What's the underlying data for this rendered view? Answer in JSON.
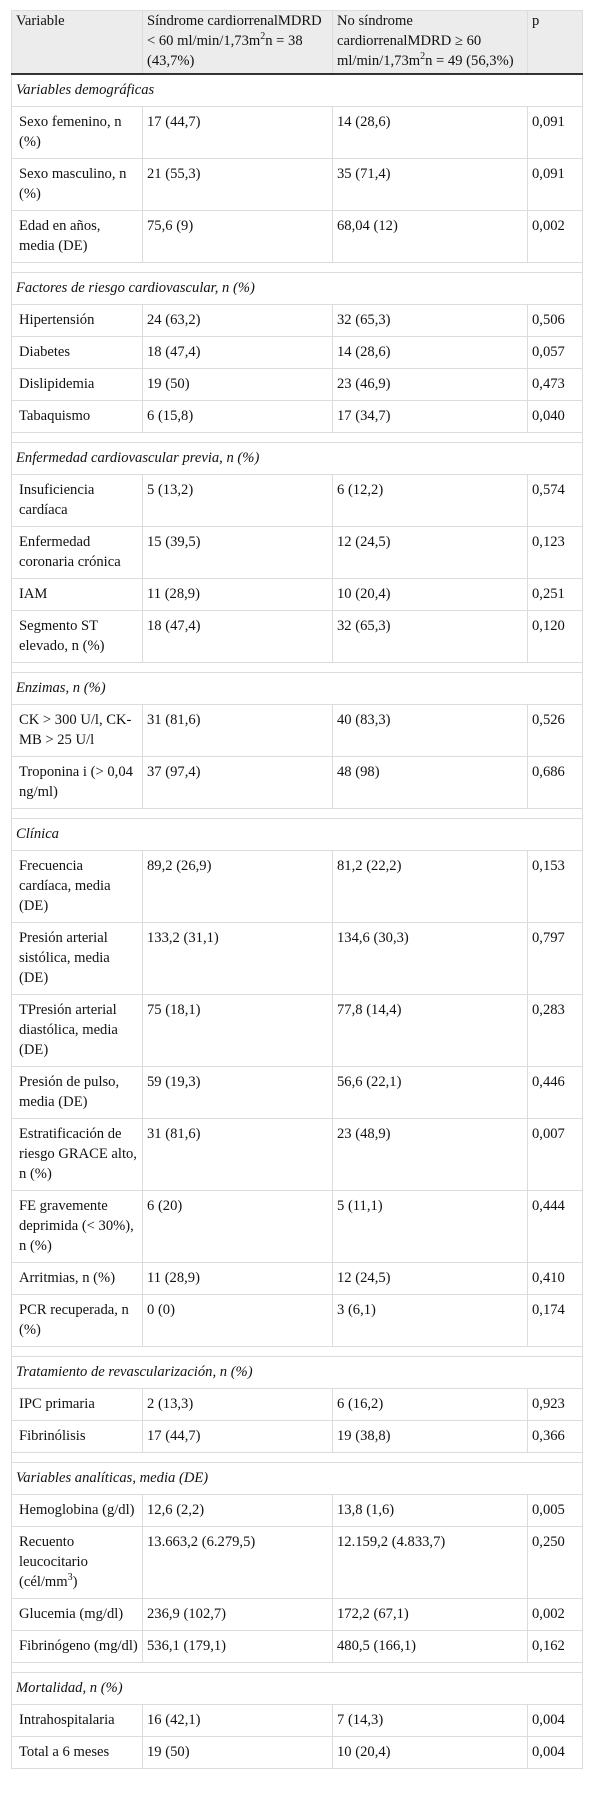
{
  "table": {
    "header": [
      "Variable",
      {
        "parts": [
          "Síndrome cardiorrenalMDRD < 60 ml/min/1,73m",
          "2",
          "n = 38 (43,7%)"
        ]
      },
      {
        "parts": [
          "No síndrome cardiorrenalMDRD ≥ 60 ml/min/1,73m",
          "2",
          "n = 49 (56,3%)"
        ]
      },
      "p"
    ],
    "sections": [
      {
        "title": "Variables demográficas",
        "rows": [
          [
            "Sexo femenino, n (%)",
            "17 (44,7)",
            "14 (28,6)",
            "0,091"
          ],
          [
            "Sexo masculino, n (%)",
            "21 (55,3)",
            "35 (71,4)",
            "0,091"
          ],
          [
            "Edad en años, media (DE)",
            "75,6 (9)",
            "68,04 (12)",
            "0,002"
          ]
        ]
      },
      {
        "title": "Factores de riesgo cardiovascular, n (%)",
        "rows": [
          [
            "Hipertensión",
            "24 (63,2)",
            "32 (65,3)",
            "0,506"
          ],
          [
            "Diabetes",
            "18 (47,4)",
            "14 (28,6)",
            "0,057"
          ],
          [
            "Dislipidemia",
            "19 (50)",
            "23 (46,9)",
            "0,473"
          ],
          [
            "Tabaquismo",
            "6 (15,8)",
            "17 (34,7)",
            "0,040"
          ]
        ]
      },
      {
        "title": "Enfermedad cardiovascular previa, n (%)",
        "rows": [
          [
            "Insuficiencia cardíaca",
            "5 (13,2)",
            "6 (12,2)",
            "0,574"
          ],
          [
            "Enfermedad coronaria crónica",
            "15 (39,5)",
            "12 (24,5)",
            "0,123"
          ],
          [
            "IAM",
            "11 (28,9)",
            "10 (20,4)",
            "0,251"
          ],
          [
            "Segmento ST elevado, n (%)",
            "18 (47,4)",
            "32 (65,3)",
            "0,120"
          ]
        ]
      },
      {
        "title": "Enzimas, n (%)",
        "rows": [
          [
            "CK > 300 U/l, CK-MB > 25 U/l",
            "31 (81,6)",
            "40 (83,3)",
            "0,526"
          ],
          [
            "Troponina i (> 0,04 ng/ml)",
            "37 (97,4)",
            "48 (98)",
            "0,686"
          ]
        ]
      },
      {
        "title": "Clínica",
        "rows": [
          [
            "Frecuencia cardíaca, media (DE)",
            "89,2 (26,9)",
            "81,2 (22,2)",
            "0,153"
          ],
          [
            "Presión arterial sistólica, media (DE)",
            "133,2 (31,1)",
            "134,6 (30,3)",
            "0,797"
          ],
          [
            "TPresión arterial diastólica, media (DE)",
            "75 (18,1)",
            "77,8 (14,4)",
            "0,283"
          ],
          [
            "Presión de pulso, media (DE)",
            "59 (19,3)",
            "56,6 (22,1)",
            "0,446"
          ],
          [
            "Estratificación de riesgo GRACE alto, n (%)",
            "31 (81,6)",
            "23 (48,9)",
            "0,007"
          ],
          [
            "FE gravemente deprimida (< 30%), n (%)",
            "6 (20)",
            "5 (11,1)",
            "0,444"
          ],
          [
            "Arritmias, n (%)",
            "11 (28,9)",
            "12 (24,5)",
            "0,410"
          ],
          [
            "PCR recuperada, n (%)",
            "0 (0)",
            "3 (6,1)",
            "0,174"
          ]
        ]
      },
      {
        "title": "Tratamiento de revascularización, n (%)",
        "rows": [
          [
            "IPC primaria",
            "2 (13,3)",
            "6 (16,2)",
            "0,923"
          ],
          [
            "Fibrinólisis",
            "17 (44,7)",
            "19 (38,8)",
            "0,366"
          ]
        ]
      },
      {
        "title": "Variables analíticas, media (DE)",
        "rows": [
          [
            "Hemoglobina (g/dl)",
            "12,6 (2,2)",
            "13,8 (1,6)",
            "0,005"
          ],
          [
            {
              "parts": [
                "Recuento leucocitario (cél/mm",
                "3",
                ")"
              ]
            },
            "13.663,2 (6.279,5)",
            "12.159,2 (4.833,7)",
            "0,250"
          ],
          [
            "Glucemia (mg/dl)",
            "236,9 (102,7)",
            "172,2 (67,1)",
            "0,002"
          ],
          [
            "Fibrinógeno (mg/dl)",
            "536,1 (179,1)",
            "480,5 (166,1)",
            "0,162"
          ]
        ]
      },
      {
        "title": "Mortalidad, n (%)",
        "rows": [
          [
            "Intrahospitalaria",
            "16 (42,1)",
            "7 (14,3)",
            "0,004"
          ],
          [
            "Total a 6 meses",
            "19 (50)",
            "10 (20,4)",
            "0,004"
          ]
        ]
      }
    ]
  }
}
